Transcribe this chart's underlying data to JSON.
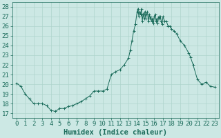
{
  "xlabel": "Humidex (Indice chaleur)",
  "background_color": "#cce8e4",
  "line_color": "#1a6b5a",
  "marker_color": "#1a6b5a",
  "xlim": [
    -0.5,
    23.5
  ],
  "ylim": [
    16.5,
    28.5
  ],
  "yticks": [
    17,
    18,
    19,
    20,
    21,
    22,
    23,
    24,
    25,
    26,
    27,
    28
  ],
  "xticks": [
    0,
    1,
    2,
    3,
    4,
    5,
    6,
    7,
    8,
    9,
    10,
    11,
    12,
    13,
    14,
    15,
    16,
    17,
    18,
    19,
    20,
    21,
    22,
    23
  ],
  "x": [
    0,
    0.5,
    1,
    1.5,
    2,
    2.5,
    3,
    3.5,
    4,
    4.5,
    5,
    5.5,
    6,
    6.5,
    7,
    7.5,
    8,
    8.5,
    9,
    9.5,
    10,
    10.5,
    11,
    11.5,
    12,
    12.5,
    13,
    13.2,
    13.4,
    13.6,
    13.8,
    14.0,
    14.1,
    14.2,
    14.3,
    14.4,
    14.5,
    14.6,
    14.7,
    14.8,
    14.9,
    15.0,
    15.1,
    15.2,
    15.3,
    15.4,
    15.5,
    15.6,
    15.7,
    15.8,
    15.9,
    16.0,
    16.1,
    16.2,
    16.3,
    16.4,
    16.5,
    16.6,
    16.7,
    16.8,
    16.9,
    17.0,
    17.2,
    17.4,
    17.6,
    17.8,
    18,
    18.3,
    18.6,
    19,
    19.5,
    20,
    20.2,
    20.5,
    21,
    21.5,
    22,
    22.5,
    23
  ],
  "y": [
    20.1,
    19.8,
    19.0,
    18.5,
    18.0,
    18.0,
    18.0,
    17.8,
    17.3,
    17.2,
    17.5,
    17.5,
    17.7,
    17.8,
    18.0,
    18.2,
    18.5,
    18.8,
    19.3,
    19.3,
    19.3,
    19.5,
    21.0,
    21.3,
    21.5,
    22.0,
    22.7,
    23.5,
    24.5,
    25.5,
    26.2,
    27.5,
    27.8,
    27.0,
    27.5,
    27.2,
    27.8,
    26.5,
    27.3,
    26.8,
    27.5,
    26.8,
    27.3,
    27.5,
    26.5,
    27.2,
    26.8,
    27.0,
    26.5,
    26.8,
    26.3,
    27.0,
    27.2,
    26.5,
    26.8,
    26.3,
    27.0,
    26.8,
    27.0,
    26.5,
    26.2,
    27.0,
    26.5,
    26.5,
    26.0,
    26.0,
    25.7,
    25.5,
    25.2,
    24.5,
    24.0,
    23.2,
    22.8,
    22.0,
    20.5,
    20.0,
    20.2,
    19.8,
    19.7
  ],
  "grid_color": "#aed4cc",
  "tick_color": "#1a6b5a",
  "tick_label_color": "#1a6b5a",
  "xlabel_color": "#1a6b5a",
  "fontsize_tick": 6.5,
  "fontsize_xlabel": 7.5
}
